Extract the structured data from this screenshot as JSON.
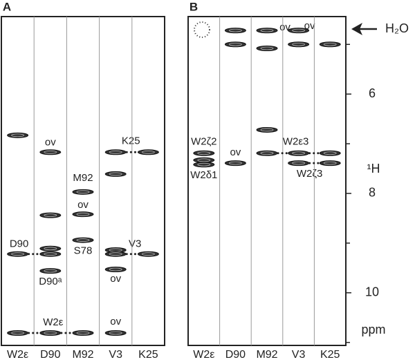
{
  "chart_data": [
    {
      "type": "strip",
      "title": "A",
      "ylim": [
        4.44,
        11.06
      ],
      "categories": [
        "W2ε",
        "D90",
        "M92",
        "V3",
        "K25"
      ],
      "peaks": [
        [
          6.83,
          9.22,
          10.81
        ],
        [
          7.17,
          8.44,
          9.11,
          9.22,
          9.56,
          10.81
        ],
        [
          7.97,
          8.42,
          8.94,
          10.81
        ],
        [
          7.17,
          7.61,
          9.14,
          9.22,
          9.53,
          10.81
        ],
        [
          7.17,
          9.22
        ]
      ],
      "peak_labels": [
        [
          null,
          "D90",
          null
        ],
        [
          "ov",
          null,
          null,
          null,
          "D90ᵃ",
          "W2ε"
        ],
        [
          "M92",
          "ov",
          "S78",
          null
        ],
        [
          "K25",
          null,
          null,
          "V3",
          "ov",
          "ov"
        ],
        [
          null,
          null
        ]
      ]
    },
    {
      "type": "strip",
      "title": "B",
      "ylim": [
        4.44,
        11.06
      ],
      "yticks": [
        6,
        8,
        10
      ],
      "minor_yticks": [
        5,
        7,
        9,
        11
      ],
      "categories": [
        "W2ε",
        "D90",
        "M92",
        "V3",
        "K25"
      ],
      "peaks": [
        [
          7.19,
          7.33,
          7.42
        ],
        [
          4.72,
          5.0,
          7.39
        ],
        [
          4.72,
          5.08,
          6.72,
          7.19
        ],
        [
          4.72,
          5.0,
          7.19,
          7.39
        ],
        [
          5.0,
          7.19,
          7.39
        ]
      ],
      "peak_labels": [
        [
          "W2ζ2",
          null,
          "W2δ1"
        ],
        [
          null,
          null,
          "ov"
        ],
        [
          "ov",
          null,
          null,
          null
        ],
        [
          "ov",
          null,
          "W2ε3",
          "W2ζ3"
        ],
        [
          null,
          null,
          null
        ]
      ],
      "annotations": [
        "H₂O",
        "¹H",
        "ppm"
      ]
    }
  ]
}
